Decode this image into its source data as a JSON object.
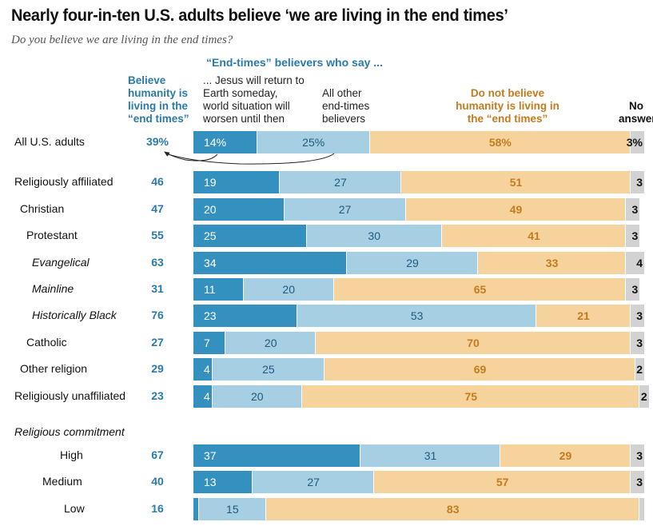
{
  "title": "Nearly four-in-ten U.S. adults believe ‘we are living in the end times’",
  "subtitle": "Do you believe we are living in the end times?",
  "headers": {
    "group": "“End-times” believers who say ...",
    "believe": "Believe humanity is living in the “end times”",
    "jesus": "... Jesus will return to Earth someday, world situation will worsen until then",
    "other": "All other end-times believers",
    "notbelieve": "Do not believe humanity is living in the “end times”",
    "noanswer": "No answer"
  },
  "section_label": "Religious commitment",
  "colors": {
    "jesus": "#3390bf",
    "other": "#a6cfe4",
    "notbelieve": "#f6d39d",
    "noanswer": "#d2d2d2",
    "believe_text": "#2a7aab",
    "notbelieve_text": "#c47b1f"
  },
  "chart_data": {
    "type": "bar",
    "orientation": "horizontal-stacked",
    "xlim": [
      0,
      100
    ],
    "series_names": [
      "... Jesus will return to Earth someday, world situation will worsen until then",
      "All other end-times believers",
      "Do not believe humanity is living in the “end times”",
      "No answer"
    ],
    "rows": [
      {
        "label": "All U.S. adults",
        "level": 0,
        "italic": false,
        "total": "39%",
        "values": [
          14,
          25,
          58,
          3
        ],
        "labels": [
          "14%",
          "25%",
          "58%",
          "3%"
        ]
      },
      {
        "label": "Religiously affiliated",
        "level": 0,
        "italic": false,
        "total": "46",
        "values": [
          19,
          27,
          51,
          3
        ],
        "labels": [
          "19",
          "27",
          "51",
          "3"
        ]
      },
      {
        "label": "Christian",
        "level": 1,
        "italic": false,
        "total": "47",
        "values": [
          20,
          27,
          49,
          3
        ],
        "labels": [
          "20",
          "27",
          "49",
          "3"
        ]
      },
      {
        "label": "Protestant",
        "level": 2,
        "italic": false,
        "total": "55",
        "values": [
          25,
          30,
          41,
          3
        ],
        "labels": [
          "25",
          "30",
          "41",
          "3"
        ]
      },
      {
        "label": "Evangelical",
        "level": 3,
        "italic": true,
        "total": "63",
        "values": [
          34,
          29,
          33,
          4
        ],
        "labels": [
          "34",
          "29",
          "33",
          "4"
        ]
      },
      {
        "label": "Mainline",
        "level": 3,
        "italic": true,
        "total": "31",
        "values": [
          11,
          20,
          65,
          3
        ],
        "labels": [
          "11",
          "20",
          "65",
          "3"
        ]
      },
      {
        "label": "Historically Black",
        "level": 3,
        "italic": true,
        "total": "76",
        "values": [
          23,
          53,
          21,
          3
        ],
        "labels": [
          "23",
          "53",
          "21",
          "3"
        ]
      },
      {
        "label": "Catholic",
        "level": 2,
        "italic": false,
        "total": "27",
        "values": [
          7,
          20,
          70,
          3
        ],
        "labels": [
          "7",
          "20",
          "70",
          "3"
        ]
      },
      {
        "label": "Other religion",
        "level": 1,
        "italic": false,
        "total": "29",
        "values": [
          4,
          25,
          69,
          2
        ],
        "labels": [
          "4",
          "25",
          "69",
          "2"
        ]
      },
      {
        "label": "Religiously unaffiliated",
        "level": 0,
        "italic": false,
        "total": "23",
        "values": [
          4,
          20,
          75,
          2
        ],
        "labels": [
          "4",
          "20",
          "75",
          "2"
        ]
      },
      {
        "label": "High",
        "level": "commitment",
        "italic": false,
        "total": "67",
        "values": [
          37,
          31,
          29,
          3
        ],
        "labels": [
          "37",
          "31",
          "29",
          "3"
        ]
      },
      {
        "label": "Medium",
        "level": "commitment",
        "italic": false,
        "total": "40",
        "values": [
          13,
          27,
          57,
          3
        ],
        "labels": [
          "13",
          "27",
          "57",
          "3"
        ]
      },
      {
        "label": "Low",
        "level": "commitment",
        "italic": false,
        "total": "16",
        "values": [
          1,
          15,
          83,
          1
        ],
        "labels": [
          "",
          "15",
          "83",
          ""
        ]
      }
    ]
  }
}
